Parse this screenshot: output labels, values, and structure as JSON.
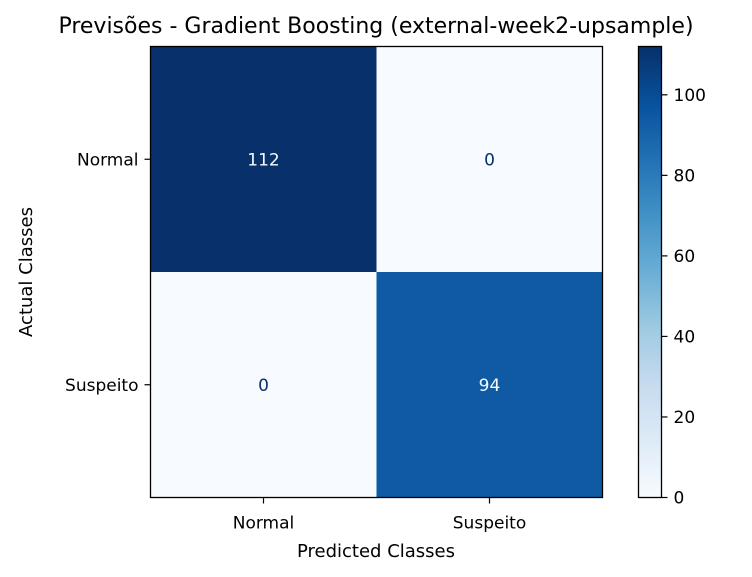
{
  "chart_data": {
    "type": "heatmap",
    "title": "Previsões - Gradient Boosting (external-week2-upsample)",
    "xlabel": "Predicted Classes",
    "ylabel": "Actual Classes",
    "x_categories": [
      "Normal",
      "Suspeito"
    ],
    "y_categories": [
      "Normal",
      "Suspeito"
    ],
    "values": [
      [
        112,
        0
      ],
      [
        0,
        94
      ]
    ],
    "cell_labels": [
      [
        "112",
        "0"
      ],
      [
        "0",
        "94"
      ]
    ],
    "colormap": "Blues",
    "color_range": [
      0,
      112
    ],
    "colorbar_ticks": [
      0,
      20,
      40,
      60,
      80,
      100
    ],
    "colorbar_tick_labels": [
      "0",
      "20",
      "40",
      "60",
      "80",
      "100"
    ],
    "colors": {
      "max": "#08306b",
      "min": "#f7fbff",
      "text_dark_cell": "#f7fbff",
      "text_light_cell": "#08306b"
    }
  }
}
